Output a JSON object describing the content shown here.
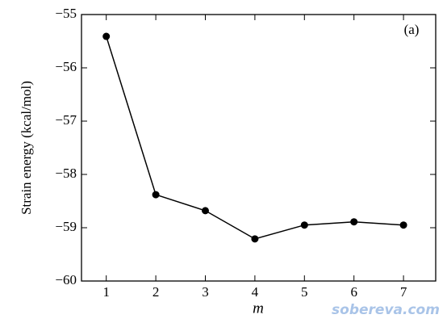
{
  "chart_data": {
    "type": "line",
    "y_label": "Strain energy (kcal/mol)",
    "x_label": "m",
    "annotation": "(a)",
    "watermark": "sobereva.com",
    "x": [
      1,
      2,
      3,
      4,
      5,
      6,
      7
    ],
    "series": [
      {
        "color": "#000000",
        "values": [
          -55.41,
          -58.38,
          -58.68,
          -59.21,
          -58.95,
          -58.89,
          -58.95
        ]
      }
    ],
    "xlim": [
      0.5,
      7.65
    ],
    "xticks": [
      1,
      2,
      3,
      4,
      5,
      6,
      7
    ],
    "ylim": [
      -60,
      -55
    ],
    "yticks": [
      {
        "value": -60,
        "label": "−60"
      },
      {
        "value": -59,
        "label": "−59"
      },
      {
        "value": -58,
        "label": "−58"
      },
      {
        "value": -57,
        "label": "−57"
      },
      {
        "value": -56,
        "label": "−56"
      },
      {
        "value": -55,
        "label": "−55"
      }
    ]
  }
}
